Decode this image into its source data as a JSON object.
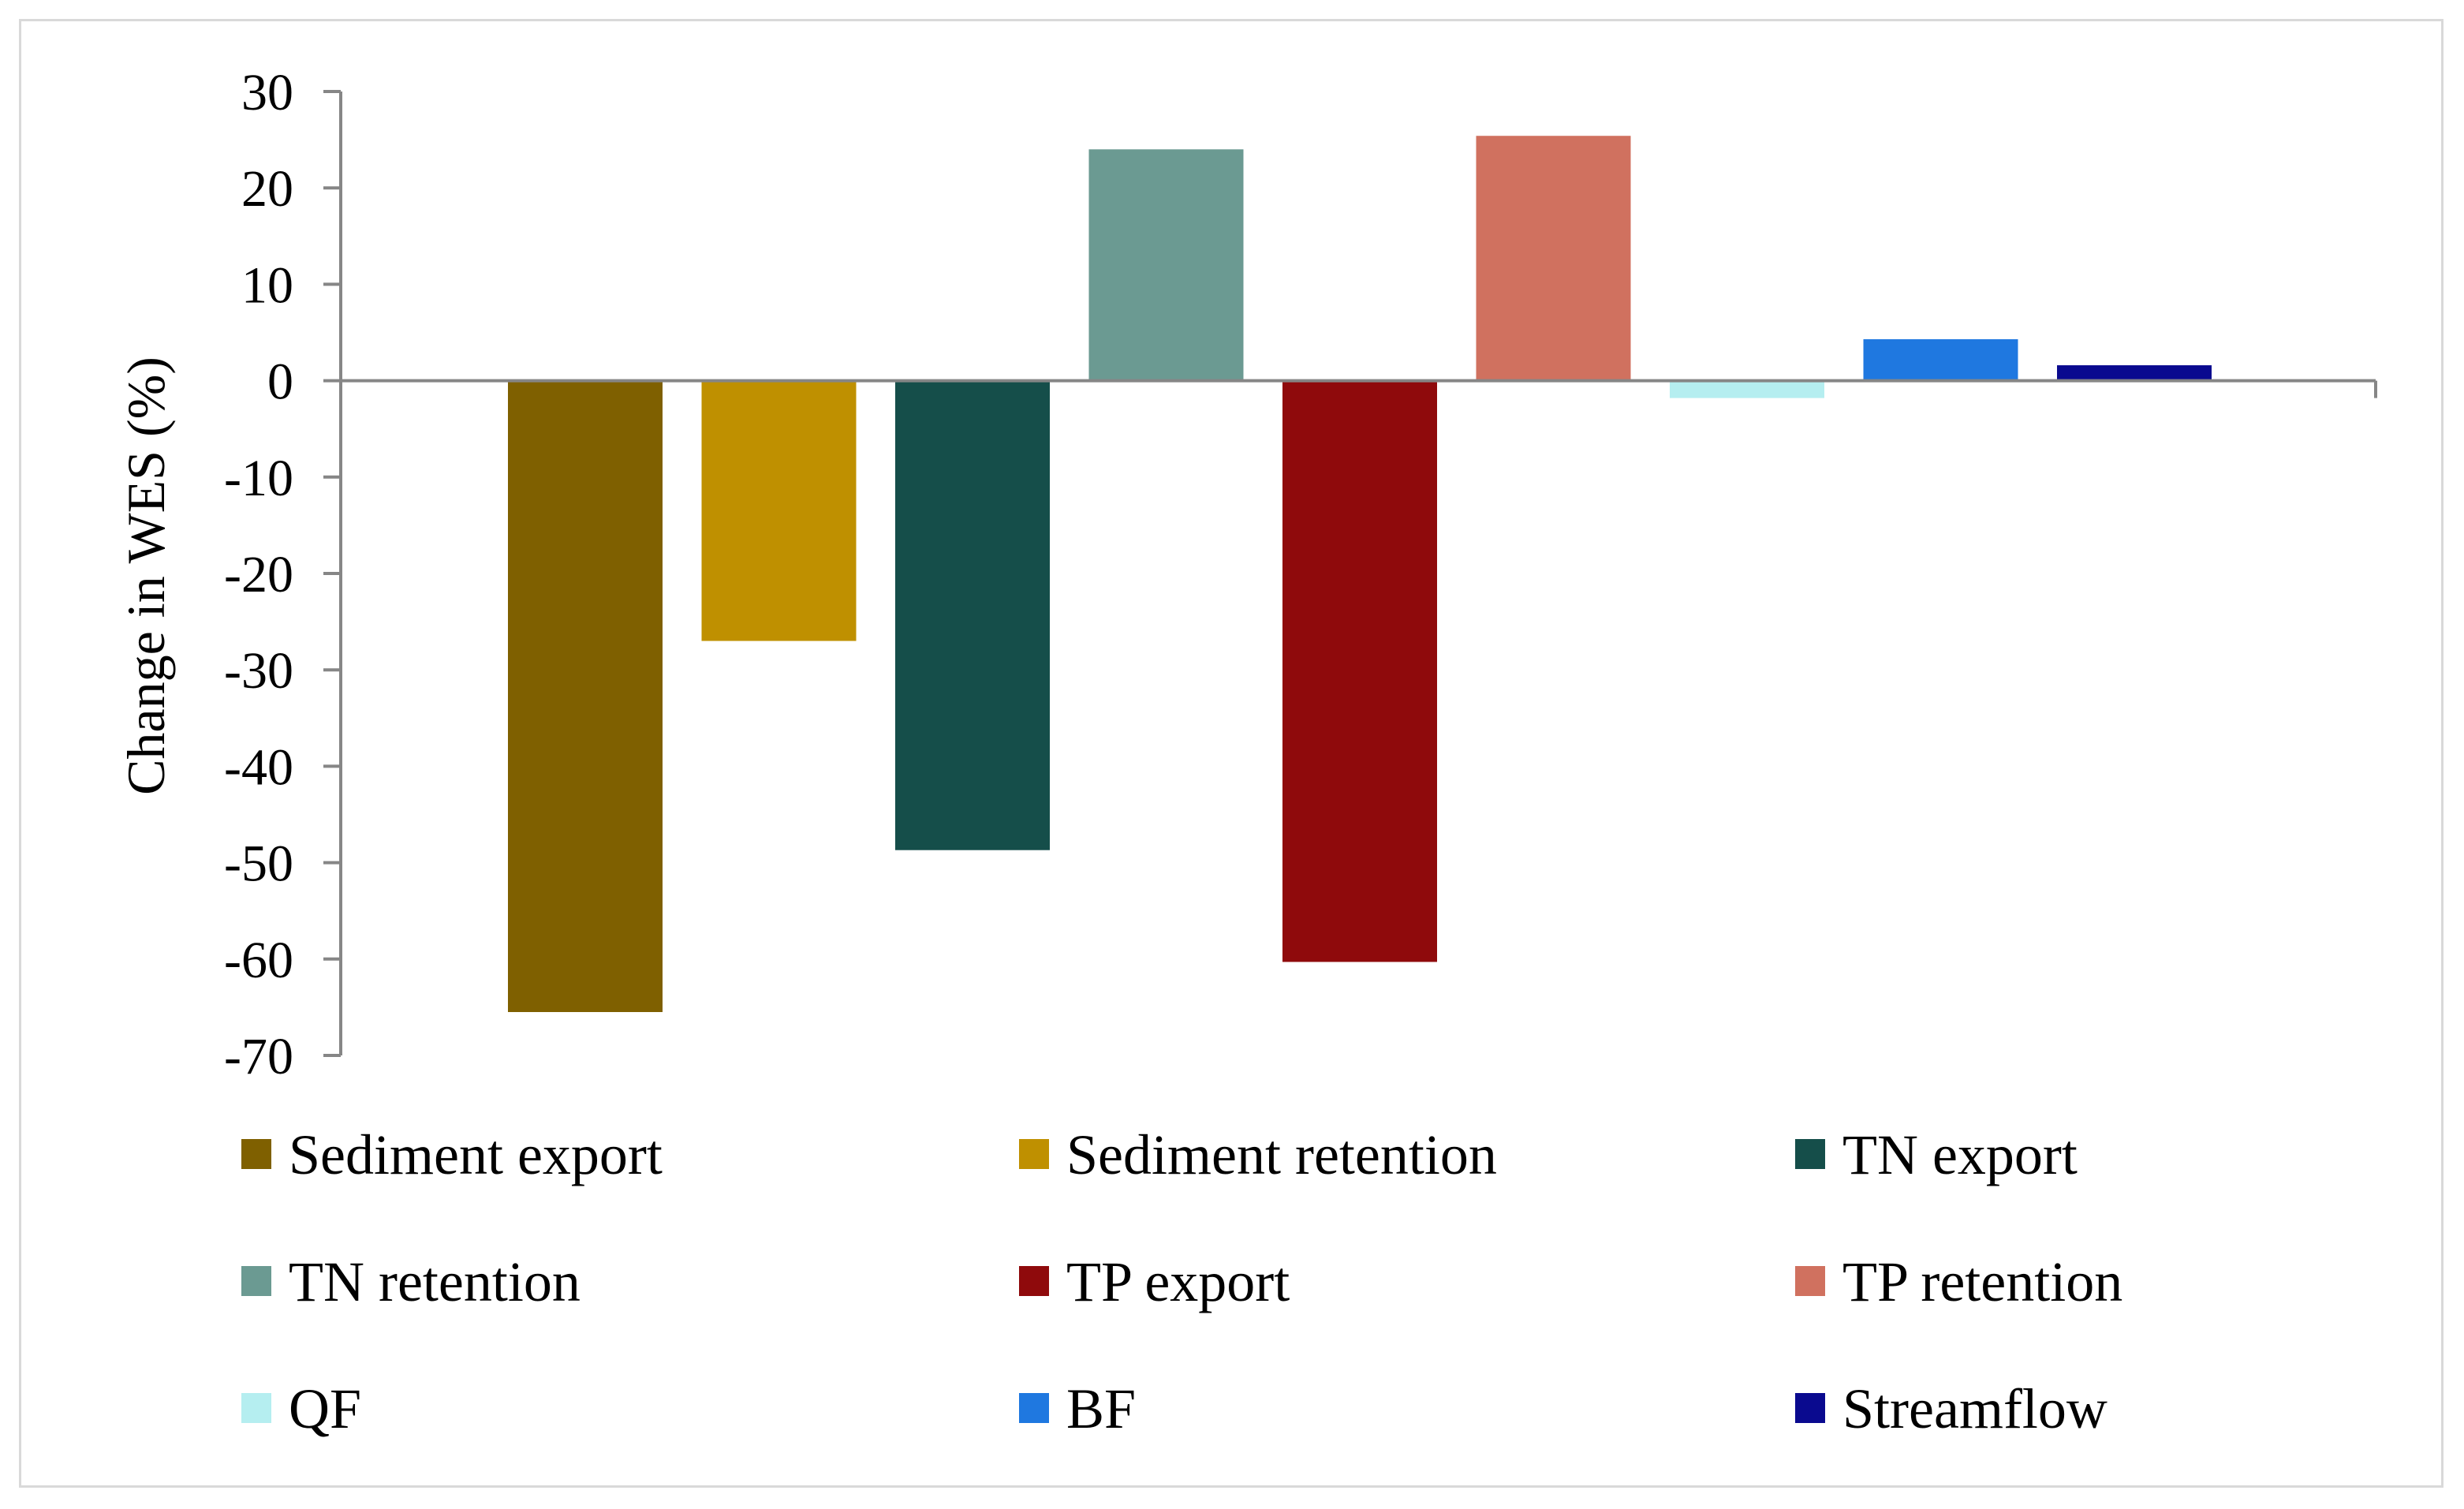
{
  "chart_data": {
    "type": "bar",
    "title": "",
    "xlabel": "",
    "ylabel": "Change in WES (%)",
    "ylim": [
      -70,
      30
    ],
    "yticks": [
      30,
      20,
      10,
      0,
      -10,
      -20,
      -30,
      -40,
      -50,
      -60,
      -70
    ],
    "grid": false,
    "legend_position": "bottom",
    "series": [
      {
        "name": "Sediment export",
        "value": -65.5,
        "color": "#7f6000"
      },
      {
        "name": "Sediment retention",
        "value": -27,
        "color": "#bf9000"
      },
      {
        "name": "TN export",
        "value": -48.7,
        "color": "#154e4a"
      },
      {
        "name": "TN retention",
        "value": 24,
        "color": "#6b9a92"
      },
      {
        "name": "TP export",
        "value": -60.3,
        "color": "#8f0a0c"
      },
      {
        "name": "TP retention",
        "value": 25.4,
        "color": "#d0715f"
      },
      {
        "name": "QF",
        "value": -1.8,
        "color": "#b5eef0"
      },
      {
        "name": "BF",
        "value": 4.3,
        "color": "#1f78e0"
      },
      {
        "name": "Streamflow",
        "value": 1.6,
        "color": "#0a0a8f"
      }
    ]
  }
}
